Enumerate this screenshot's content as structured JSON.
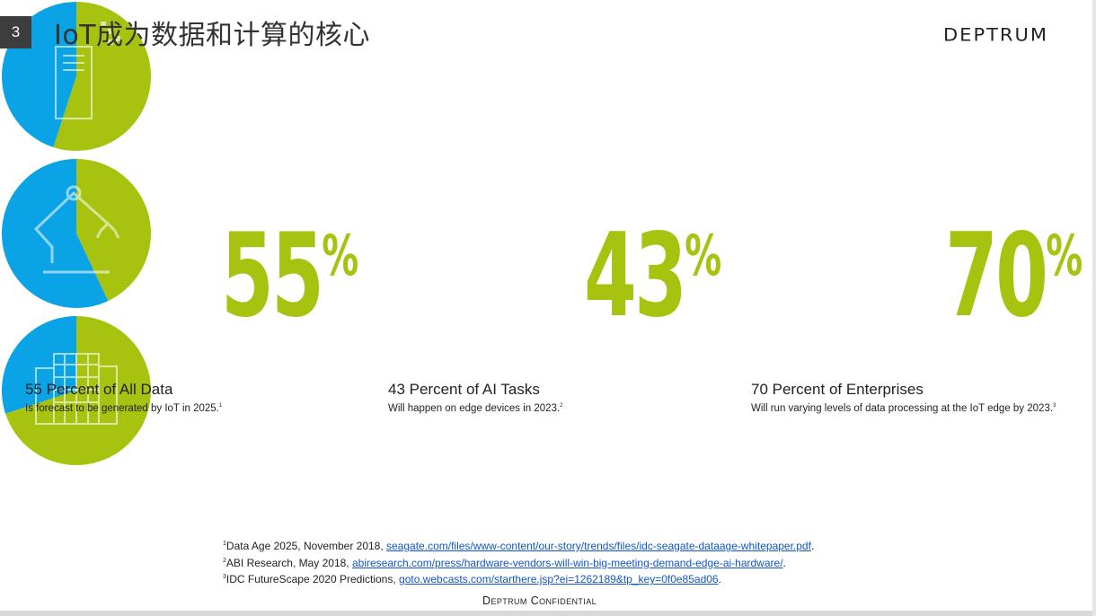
{
  "slide": {
    "number": "3",
    "title": "IoT成为数据和计算的核心",
    "logo_text": "DEPTRUM",
    "confidential": "Deptrum Confidential"
  },
  "colors": {
    "green": "#a7c310",
    "blue": "#0aa3e6",
    "icon": "#ffffff"
  },
  "stats": [
    {
      "percent_label": "55",
      "sign": "%",
      "title": "55 Percent of All Data",
      "desc": "Is forecast to be generated by IoT in 2025.",
      "sup": "1",
      "icon": "server-icon"
    },
    {
      "percent_label": "43",
      "sign": "%",
      "title": "43 Percent of AI Tasks",
      "desc": "Will happen on edge devices in 2023.",
      "sup": "2",
      "icon": "robot-arm-icon"
    },
    {
      "percent_label": "70",
      "sign": "%",
      "title": "70 Percent of Enterprises",
      "desc": "Will run varying levels of data processing at the IoT edge by 2023.",
      "sup": "3",
      "icon": "building-icon"
    }
  ],
  "chart_data": [
    {
      "type": "pie",
      "categories": [
        "",
        ""
      ],
      "values": [
        55,
        45
      ],
      "colors": [
        "#a7c310",
        "#0aa3e6"
      ],
      "title": ""
    },
    {
      "type": "pie",
      "categories": [
        "",
        ""
      ],
      "values": [
        43,
        57
      ],
      "colors": [
        "#a7c310",
        "#0aa3e6"
      ],
      "title": ""
    },
    {
      "type": "pie",
      "categories": [
        "",
        ""
      ],
      "values": [
        70,
        30
      ],
      "colors": [
        "#a7c310",
        "#0aa3e6"
      ],
      "title": ""
    }
  ],
  "footnotes": [
    {
      "sup": "1",
      "text": "Data Age 2025, November 2018, ",
      "link": "seagate.com/files/www-content/our-story/trends/files/idc-seagate-dataage-whitepaper.pdf",
      "tail": "."
    },
    {
      "sup": "2",
      "text": "ABI Research, May 2018, ",
      "link": "abiresearch.com/press/hardware-vendors-will-win-big-meeting-demand-edge-ai-hardware/",
      "tail": "."
    },
    {
      "sup": "3",
      "text": "IDC FutureScape 2020 Predictions, ",
      "link": "goto.webcasts.com/starthere.jsp?ei=1262189&tp_key=0f0e85ad06",
      "tail": "."
    }
  ]
}
